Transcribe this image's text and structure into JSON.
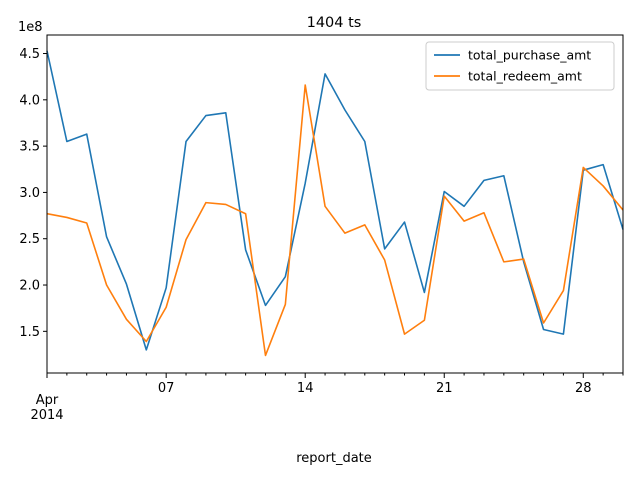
{
  "chart_data": {
    "type": "line",
    "title": "1404 ts",
    "xlabel": "report_date",
    "ylabel": "",
    "y_offset_label": "1e8",
    "x_start": "2014-04-01",
    "x_end": "2014-04-30",
    "x_tick_labels": [
      {
        "day": 1,
        "text": "Apr\n2014"
      },
      {
        "day": 7,
        "text": "07"
      },
      {
        "day": 14,
        "text": "14"
      },
      {
        "day": 21,
        "text": "21"
      },
      {
        "day": 28,
        "text": "28"
      }
    ],
    "y_ticks": [
      1.5,
      2.0,
      2.5,
      3.0,
      3.5,
      4.0,
      4.5
    ],
    "y_tick_labels": [
      "1.5",
      "2.0",
      "2.5",
      "3.0",
      "3.5",
      "4.0",
      "4.5"
    ],
    "ylim": [
      1.05,
      4.7
    ],
    "legend": "top-right",
    "grid": false,
    "x": [
      "2014-04-01",
      "2014-04-02",
      "2014-04-03",
      "2014-04-04",
      "2014-04-05",
      "2014-04-06",
      "2014-04-07",
      "2014-04-08",
      "2014-04-09",
      "2014-04-10",
      "2014-04-11",
      "2014-04-12",
      "2014-04-13",
      "2014-04-14",
      "2014-04-15",
      "2014-04-16",
      "2014-04-17",
      "2014-04-18",
      "2014-04-19",
      "2014-04-20",
      "2014-04-21",
      "2014-04-22",
      "2014-04-23",
      "2014-04-24",
      "2014-04-25",
      "2014-04-26",
      "2014-04-27",
      "2014-04-28",
      "2014-04-29",
      "2014-04-30"
    ],
    "series": [
      {
        "name": "total_purchase_amt",
        "color": "#1f77b4",
        "values": [
          4.53,
          3.55,
          3.63,
          2.52,
          2.01,
          1.3,
          1.97,
          3.55,
          3.83,
          3.86,
          2.38,
          1.78,
          2.09,
          3.1,
          4.28,
          3.89,
          3.55,
          2.39,
          2.68,
          1.92,
          3.01,
          2.85,
          3.13,
          3.18,
          2.25,
          1.52,
          1.47,
          3.24,
          3.3,
          2.6
        ]
      },
      {
        "name": "total_redeem_amt",
        "color": "#ff7f0e",
        "values": [
          2.77,
          2.73,
          2.67,
          2.0,
          1.63,
          1.39,
          1.76,
          2.49,
          2.89,
          2.87,
          2.77,
          1.24,
          1.79,
          4.16,
          2.85,
          2.56,
          2.65,
          2.27,
          1.47,
          1.62,
          2.96,
          2.69,
          2.78,
          2.25,
          2.28,
          1.59,
          1.94,
          3.27,
          3.07,
          2.81
        ]
      }
    ]
  }
}
